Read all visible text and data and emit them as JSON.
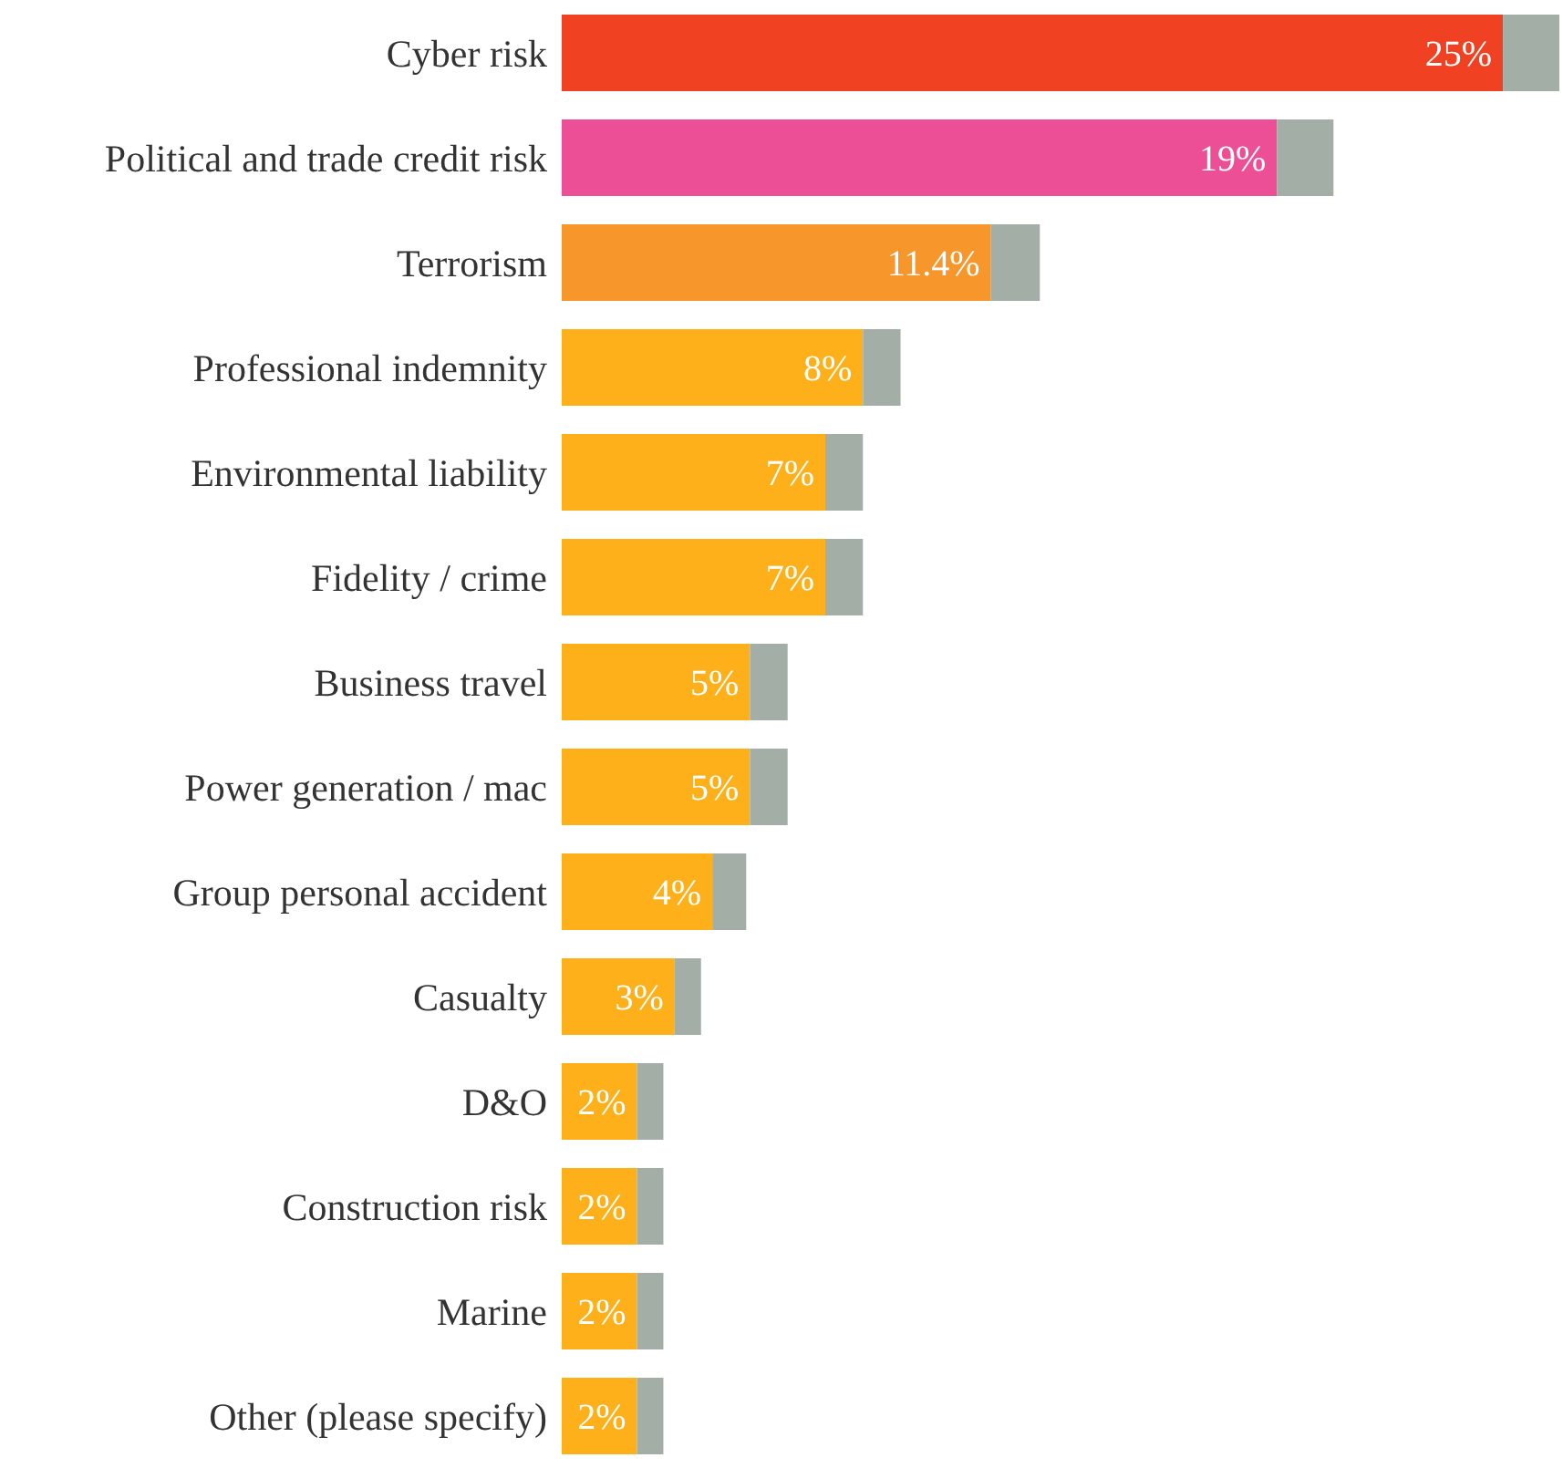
{
  "chart_data": {
    "type": "bar",
    "orientation": "horizontal",
    "stacked": true,
    "tick_labels": false,
    "categories": [
      "Cyber risk",
      "Political and trade credit risk",
      "Terrorism",
      "Professional indemnity",
      "Environmental liability",
      "Fidelity / crime",
      "Business travel",
      "Power generation / mac",
      "Group personal accident",
      "Casualty",
      "D&O",
      "Construction risk",
      "Marine",
      "Other (please specify)"
    ],
    "series": [
      {
        "colors": [
          "#f04123",
          "#ec4f96",
          "#f7962a",
          "#fdb01a",
          "#fdb01a",
          "#fdb01a",
          "#fdb01a",
          "#fdb01a",
          "#fdb01a",
          "#fdb01a",
          "#fdb01a",
          "#fdb01a",
          "#fdb01a",
          "#fdb01a"
        ],
        "values": [
          25,
          19,
          11.4,
          8,
          7,
          7,
          5,
          5,
          4,
          3,
          2,
          2,
          2,
          2
        ],
        "value_labels": [
          "25%",
          "19%",
          "11.4%",
          "8%",
          "7%",
          "7%",
          "5%",
          "5%",
          "4%",
          "3%",
          "2%",
          "2%",
          "2%",
          "2%"
        ]
      },
      {
        "color": "#a3aea6",
        "values": [
          1.5,
          1.5,
          1.3,
          1,
          1,
          1,
          1,
          1,
          0.9,
          0.7,
          0.7,
          0.7,
          0.7,
          0.7
        ]
      }
    ]
  }
}
